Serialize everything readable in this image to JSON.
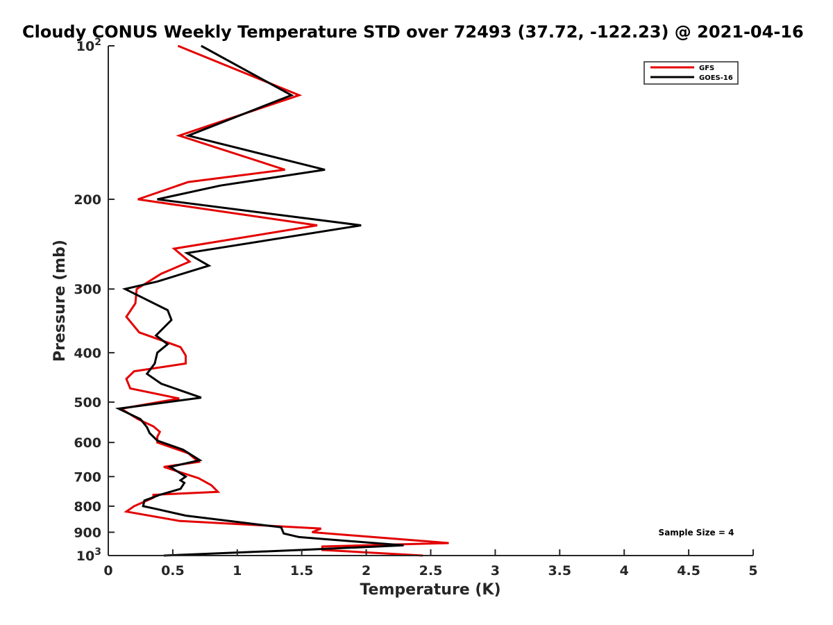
{
  "chart_data": {
    "type": "line",
    "title": "Cloudy CONUS Weekly Temperature STD over 72493 (37.72, -122.23) @ 2021-04-16",
    "xlabel": "Temperature (K)",
    "ylabel": "Pressure (mb)",
    "xlim": [
      0,
      5
    ],
    "ylim": [
      100,
      1000
    ],
    "y_scale": "log",
    "y_reversed": true,
    "x_ticks": [
      "0",
      "0.5",
      "1",
      "1.5",
      "2",
      "2.5",
      "3",
      "3.5",
      "4",
      "4.5",
      "5"
    ],
    "y_ticks": [
      {
        "value": 100,
        "base": "10",
        "exp": "2"
      },
      {
        "value": 200,
        "label": "200"
      },
      {
        "value": 300,
        "label": "300"
      },
      {
        "value": 400,
        "label": "400"
      },
      {
        "value": 500,
        "label": "500"
      },
      {
        "value": 600,
        "label": "600"
      },
      {
        "value": 700,
        "label": "700"
      },
      {
        "value": 800,
        "label": "800"
      },
      {
        "value": 900,
        "label": "900"
      },
      {
        "value": 1000,
        "base": "10",
        "exp": "3"
      }
    ],
    "grid": false,
    "legend_position": "top-right",
    "annotation": "Sample Size = 4",
    "series": [
      {
        "name": "GFS",
        "color": "#e30000",
        "points": [
          [
            0.54,
            100
          ],
          [
            1.48,
            125
          ],
          [
            0.55,
            150
          ],
          [
            1.37,
            175
          ],
          [
            0.62,
            185
          ],
          [
            0.23,
            200
          ],
          [
            1.62,
            225
          ],
          [
            0.51,
            250
          ],
          [
            0.63,
            265
          ],
          [
            0.41,
            280
          ],
          [
            0.22,
            300
          ],
          [
            0.21,
            320
          ],
          [
            0.14,
            340
          ],
          [
            0.24,
            365
          ],
          [
            0.56,
            390
          ],
          [
            0.6,
            405
          ],
          [
            0.6,
            420
          ],
          [
            0.2,
            435
          ],
          [
            0.14,
            450
          ],
          [
            0.17,
            470
          ],
          [
            0.55,
            492
          ],
          [
            0.1,
            515
          ],
          [
            0.23,
            540
          ],
          [
            0.35,
            558
          ],
          [
            0.4,
            572
          ],
          [
            0.38,
            585
          ],
          [
            0.38,
            600
          ],
          [
            0.62,
            630
          ],
          [
            0.7,
            655
          ],
          [
            0.43,
            670
          ],
          [
            0.7,
            705
          ],
          [
            0.8,
            728
          ],
          [
            0.85,
            750
          ],
          [
            0.35,
            760
          ],
          [
            0.35,
            770
          ],
          [
            0.3,
            780
          ],
          [
            0.2,
            800
          ],
          [
            0.14,
            820
          ],
          [
            0.55,
            855
          ],
          [
            1.65,
            885
          ],
          [
            1.58,
            900
          ],
          [
            2.64,
            945
          ],
          [
            1.66,
            960
          ],
          [
            1.66,
            975
          ],
          [
            2.44,
            1000
          ]
        ]
      },
      {
        "name": "GOES-16",
        "color": "#000000",
        "points": [
          [
            0.72,
            100
          ],
          [
            1.42,
            125
          ],
          [
            0.62,
            150
          ],
          [
            1.68,
            175
          ],
          [
            0.87,
            188
          ],
          [
            0.38,
            200
          ],
          [
            1.96,
            225
          ],
          [
            0.61,
            255
          ],
          [
            0.78,
            270
          ],
          [
            0.38,
            290
          ],
          [
            0.13,
            300
          ],
          [
            0.46,
            330
          ],
          [
            0.49,
            345
          ],
          [
            0.37,
            370
          ],
          [
            0.46,
            385
          ],
          [
            0.38,
            400
          ],
          [
            0.36,
            420
          ],
          [
            0.3,
            440
          ],
          [
            0.41,
            460
          ],
          [
            0.72,
            490
          ],
          [
            0.08,
            515
          ],
          [
            0.25,
            540
          ],
          [
            0.3,
            560
          ],
          [
            0.32,
            575
          ],
          [
            0.38,
            595
          ],
          [
            0.58,
            620
          ],
          [
            0.71,
            650
          ],
          [
            0.48,
            670
          ],
          [
            0.54,
            685
          ],
          [
            0.6,
            700
          ],
          [
            0.56,
            712
          ],
          [
            0.59,
            720
          ],
          [
            0.56,
            740
          ],
          [
            0.4,
            760
          ],
          [
            0.34,
            770
          ],
          [
            0.28,
            780
          ],
          [
            0.27,
            800
          ],
          [
            0.37,
            810
          ],
          [
            0.6,
            835
          ],
          [
            1.34,
            880
          ],
          [
            1.36,
            905
          ],
          [
            1.48,
            920
          ],
          [
            2.29,
            955
          ],
          [
            1.5,
            975
          ],
          [
            0.43,
            1000
          ]
        ]
      }
    ]
  }
}
